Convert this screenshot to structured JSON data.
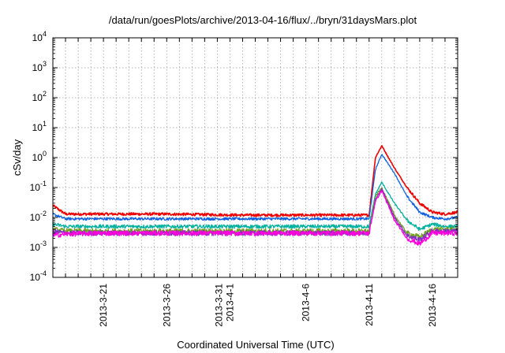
{
  "chart_data": {
    "type": "line",
    "title": "/data/run/goesPlots/archive/2013-04-16/flux/../bryn/31daysMars.plot",
    "xlabel": "Coordinated Universal Time (UTC)",
    "ylabel": "cSv/day",
    "yscale": "log",
    "ylim": [
      0.0001,
      10000
    ],
    "xlim": [
      "2013-03-17",
      "2013-04-18"
    ],
    "grid": true,
    "y_ticks": [
      {
        "mantissa": "10",
        "exp": "-4"
      },
      {
        "mantissa": "10",
        "exp": "-3"
      },
      {
        "mantissa": "10",
        "exp": "-2"
      },
      {
        "mantissa": "10",
        "exp": "-1"
      },
      {
        "mantissa": "10",
        "exp": "0"
      },
      {
        "mantissa": "10",
        "exp": "1"
      },
      {
        "mantissa": "10",
        "exp": "2"
      },
      {
        "mantissa": "10",
        "exp": "3"
      },
      {
        "mantissa": "10",
        "exp": "4"
      }
    ],
    "x_ticks": [
      {
        "date": "2013-03-21",
        "lines": [
          "2013-3-21"
        ]
      },
      {
        "date": "2013-03-26",
        "lines": [
          "2013-3-26"
        ]
      },
      {
        "date": "2013-03-31",
        "lines": [
          "2013-3-31",
          "2013-4-1"
        ]
      },
      {
        "date": "2013-04-06",
        "lines": [
          "2013-4-6"
        ]
      },
      {
        "date": "2013-04-11",
        "lines": [
          "2013-4-11"
        ]
      },
      {
        "date": "2013-04-16",
        "lines": [
          "2013-4-16"
        ]
      }
    ],
    "event_date": "2013-04-11",
    "series": [
      {
        "color": "#ee0000",
        "x": [
          "2013-03-17",
          "2013-03-18",
          "2013-03-21",
          "2013-03-26",
          "2013-04-01",
          "2013-04-06",
          "2013-04-11",
          "2013-04-11T12:00",
          "2013-04-12",
          "2013-04-13",
          "2013-04-14",
          "2013-04-15",
          "2013-04-16",
          "2013-04-17",
          "2013-04-18"
        ],
        "values": [
          0.025,
          0.013,
          0.013,
          0.013,
          0.012,
          0.012,
          0.012,
          1.0,
          2.5,
          0.45,
          0.1,
          0.03,
          0.015,
          0.013,
          0.015
        ]
      },
      {
        "color": "#1060e0",
        "x": [
          "2013-03-17",
          "2013-03-18",
          "2013-03-21",
          "2013-03-26",
          "2013-04-01",
          "2013-04-06",
          "2013-04-11",
          "2013-04-11T12:00",
          "2013-04-12",
          "2013-04-13",
          "2013-04-14",
          "2013-04-15",
          "2013-04-16",
          "2013-04-17",
          "2013-04-18"
        ],
        "values": [
          0.013,
          0.009,
          0.009,
          0.009,
          0.009,
          0.009,
          0.009,
          0.4,
          1.3,
          0.3,
          0.05,
          0.015,
          0.01,
          0.009,
          0.01
        ]
      },
      {
        "color": "#00b0a0",
        "x": [
          "2013-03-17",
          "2013-03-18",
          "2013-03-21",
          "2013-03-26",
          "2013-04-01",
          "2013-04-06",
          "2013-04-11",
          "2013-04-11T12:00",
          "2013-04-12",
          "2013-04-13",
          "2013-04-14",
          "2013-04-15",
          "2013-04-16",
          "2013-04-17",
          "2013-04-18"
        ],
        "values": [
          0.006,
          0.005,
          0.005,
          0.005,
          0.005,
          0.005,
          0.005,
          0.06,
          0.15,
          0.03,
          0.008,
          0.004,
          0.006,
          0.005,
          0.005
        ]
      },
      {
        "color": "#70a020",
        "x": [
          "2013-03-17",
          "2013-03-18",
          "2013-03-21",
          "2013-03-26",
          "2013-04-01",
          "2013-04-06",
          "2013-04-11",
          "2013-04-11T12:00",
          "2013-04-12",
          "2013-04-13",
          "2013-04-14",
          "2013-04-15",
          "2013-04-16",
          "2013-04-17",
          "2013-04-18"
        ],
        "values": [
          0.004,
          0.0035,
          0.0035,
          0.0035,
          0.0035,
          0.0035,
          0.0035,
          0.05,
          0.1,
          0.012,
          0.003,
          0.0022,
          0.004,
          0.004,
          0.004
        ]
      },
      {
        "color": "#8030c0",
        "x": [
          "2013-03-17",
          "2013-03-18",
          "2013-03-21",
          "2013-03-26",
          "2013-04-01",
          "2013-04-06",
          "2013-04-11",
          "2013-04-11T12:00",
          "2013-04-12",
          "2013-04-13",
          "2013-04-14",
          "2013-04-15",
          "2013-04-16",
          "2013-04-17",
          "2013-04-18"
        ],
        "values": [
          0.0035,
          0.003,
          0.003,
          0.003,
          0.003,
          0.003,
          0.003,
          0.04,
          0.09,
          0.01,
          0.0025,
          0.0018,
          0.0035,
          0.0035,
          0.0035
        ]
      },
      {
        "color": "#ff00dd",
        "x": [
          "2013-03-17",
          "2013-03-18",
          "2013-03-21",
          "2013-03-26",
          "2013-04-01",
          "2013-04-06",
          "2013-04-11",
          "2013-04-11T12:00",
          "2013-04-12",
          "2013-04-13",
          "2013-04-14",
          "2013-04-15",
          "2013-04-16",
          "2013-04-17",
          "2013-04-18"
        ],
        "values": [
          0.0025,
          0.0028,
          0.003,
          0.003,
          0.003,
          0.003,
          0.003,
          0.035,
          0.08,
          0.008,
          0.002,
          0.0013,
          0.003,
          0.003,
          0.003
        ]
      }
    ]
  }
}
